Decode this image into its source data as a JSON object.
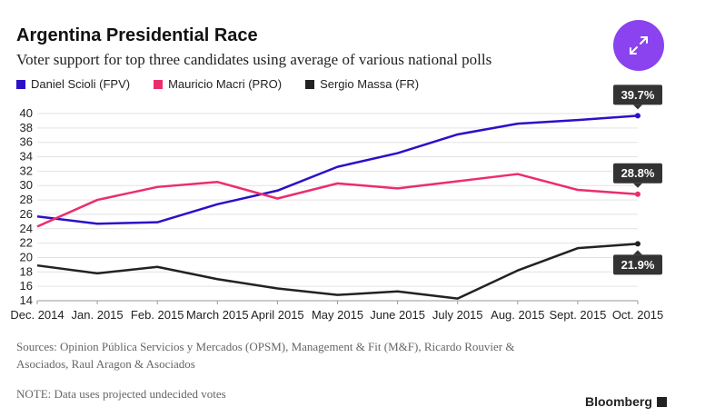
{
  "header": {
    "title": "Argentina Presidential Race",
    "subtitle": "Voter support for top three candidates using average of various national polls"
  },
  "chart_data": {
    "type": "line",
    "categories": [
      "Dec. 2014",
      "Jan. 2015",
      "Feb. 2015",
      "March 2015",
      "April 2015",
      "May 2015",
      "June 2015",
      "July 2015",
      "Aug. 2015",
      "Sept. 2015",
      "Oct. 2015"
    ],
    "ylim": [
      14,
      40
    ],
    "yticks": [
      14,
      16,
      18,
      20,
      22,
      24,
      26,
      28,
      30,
      32,
      34,
      36,
      38,
      40
    ],
    "grid": true,
    "series": [
      {
        "name": "Daniel Scioli (FPV)",
        "color": "#2b10c8",
        "values": [
          25.7,
          24.7,
          24.9,
          27.4,
          29.3,
          32.6,
          34.5,
          37.1,
          38.6,
          39.1,
          39.7
        ],
        "end_label": "39.7%"
      },
      {
        "name": "Mauricio Macri (PRO)",
        "color": "#ec2d6c",
        "values": [
          24.3,
          28.0,
          29.8,
          30.5,
          28.2,
          30.3,
          29.6,
          30.6,
          31.6,
          29.4,
          28.8
        ],
        "end_label": "28.8%"
      },
      {
        "name": "Sergio Massa (FR)",
        "color": "#222222",
        "values": [
          18.9,
          17.8,
          18.7,
          17.0,
          15.7,
          14.8,
          15.3,
          14.3,
          18.2,
          21.3,
          21.9
        ],
        "end_label": "21.9%"
      }
    ]
  },
  "footer": {
    "sources": "Sources: Opinion Pública Servicios y Mercados (OPSM), Management & Fit (M&F), Ricardo Rouvier & Asociados, Raul Aragon & Asociados",
    "note": "NOTE: Data uses projected undecided votes",
    "brand": "Bloomberg"
  }
}
